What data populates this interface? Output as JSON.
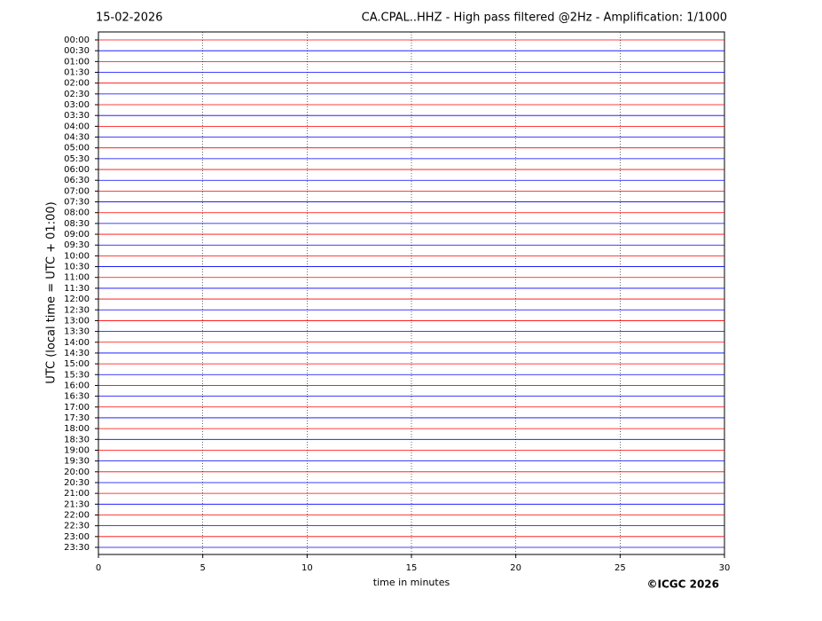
{
  "chart_data": {
    "type": "helicorder",
    "date": "15-02-2026",
    "title": "CA.CPAL..HHZ - High pass filtered @2Hz - Amplification: 1/1000",
    "y_label": "UTC (local time = UTC + 01:00)",
    "x_label": "time in minutes",
    "copyright": "©ICGC 2026",
    "categories": [
      "00:00",
      "00:30",
      "01:00",
      "01:30",
      "02:00",
      "02:30",
      "03:00",
      "03:30",
      "04:00",
      "04:30",
      "05:00",
      "05:30",
      "06:00",
      "06:30",
      "07:00",
      "07:30",
      "08:00",
      "08:30",
      "09:00",
      "09:30",
      "10:00",
      "10:30",
      "11:00",
      "11:30",
      "12:00",
      "12:30",
      "13:00",
      "13:30",
      "14:00",
      "14:30",
      "15:00",
      "15:30",
      "16:00",
      "16:30",
      "17:00",
      "17:30",
      "18:00",
      "18:30",
      "19:00",
      "19:30",
      "20:00",
      "20:30",
      "21:00",
      "21:30",
      "22:00",
      "22:30",
      "23:00",
      "23:30"
    ],
    "trace_colors": [
      "#ff0000",
      "#0000ff"
    ],
    "xlim": [
      0,
      30
    ],
    "xticks": [
      0,
      5,
      10,
      15,
      20,
      25,
      30
    ],
    "grid": true
  }
}
